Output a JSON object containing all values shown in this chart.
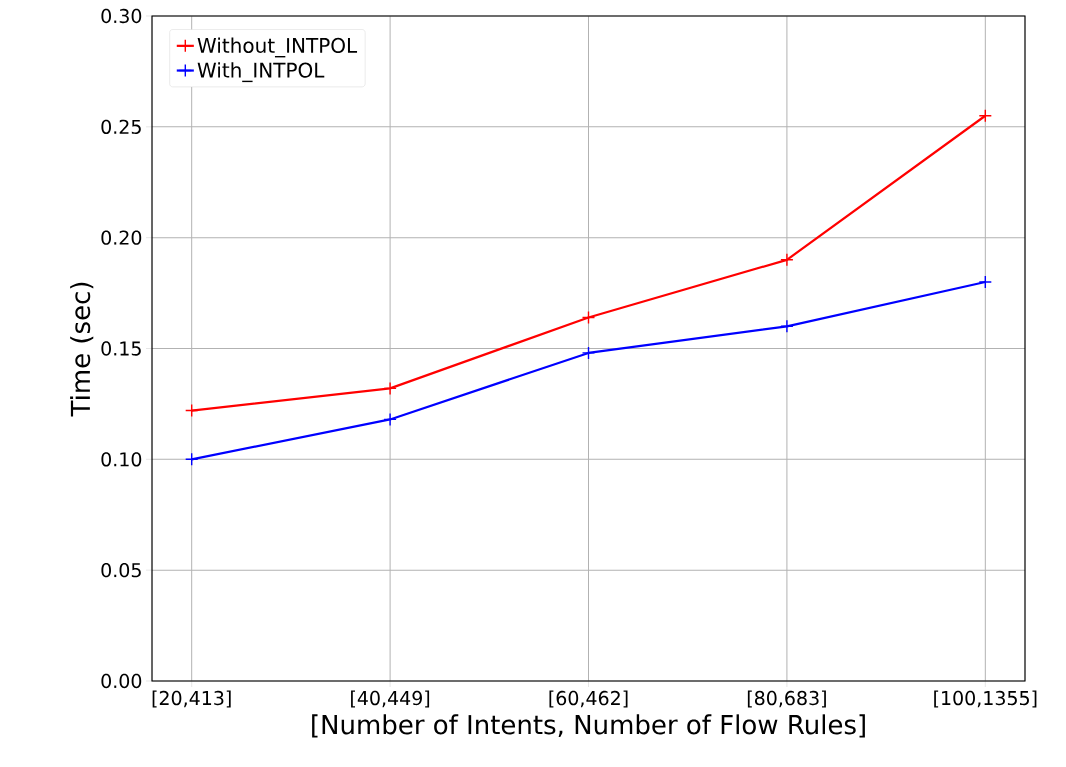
{
  "chart_data": {
    "type": "line",
    "xlabel": "[Number of Intents, Number of Flow Rules]",
    "ylabel": "Time (sec)",
    "categories": [
      "[20,413]",
      "[40,449]",
      "[60,462]",
      "[80,683]",
      "[100,1355]"
    ],
    "series": [
      {
        "name": "Without_INTPOL",
        "color": "#ff0000",
        "values": [
          0.122,
          0.132,
          0.164,
          0.19,
          0.255
        ]
      },
      {
        "name": "With_INTPOL",
        "color": "#0000ff",
        "values": [
          0.1,
          0.118,
          0.148,
          0.16,
          0.18
        ]
      }
    ],
    "ylim": [
      0,
      0.3
    ],
    "yticks": [
      {
        "value": 0,
        "label": "0.00"
      },
      {
        "value": 0.05,
        "label": "0.05"
      },
      {
        "value": 0.1,
        "label": "0.10"
      },
      {
        "value": 0.15,
        "label": "0.15"
      },
      {
        "value": 0.2,
        "label": "0.20"
      },
      {
        "value": 0.25,
        "label": "0.25"
      },
      {
        "value": 0.3,
        "label": "0.30"
      }
    ],
    "grid": true,
    "legend": "top left",
    "marker": "cross",
    "line_style": "solid"
  }
}
